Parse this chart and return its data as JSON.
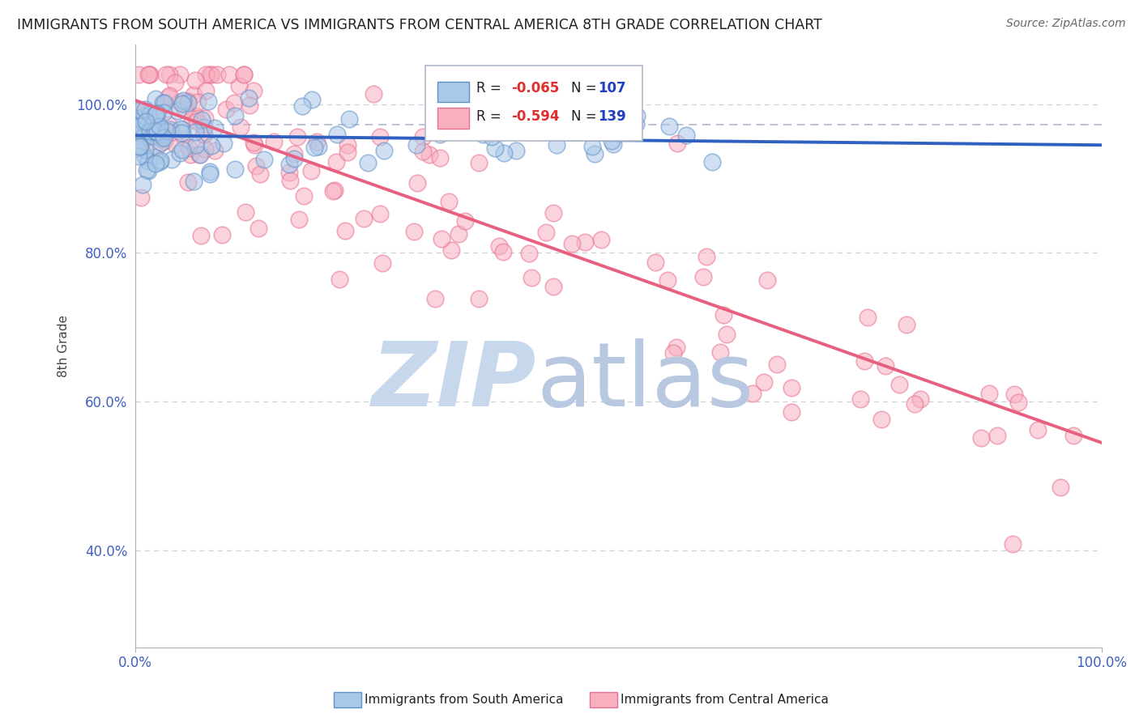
{
  "title": "IMMIGRANTS FROM SOUTH AMERICA VS IMMIGRANTS FROM CENTRAL AMERICA 8TH GRADE CORRELATION CHART",
  "source": "Source: ZipAtlas.com",
  "ylabel": "8th Grade",
  "blue_R": -0.065,
  "blue_N": 107,
  "pink_R": -0.594,
  "pink_N": 139,
  "blue_trend_x": [
    0.0,
    1.0
  ],
  "blue_trend_y": [
    0.958,
    0.945
  ],
  "pink_trend_x": [
    0.0,
    1.0
  ],
  "pink_trend_y": [
    1.005,
    0.545
  ],
  "dashed_line_y": 0.972,
  "xlim": [
    0.0,
    1.0
  ],
  "ylim": [
    0.27,
    1.08
  ],
  "yticks": [
    0.4,
    0.6,
    0.8,
    1.0
  ],
  "ytick_labels": [
    "40.0%",
    "60.0%",
    "80.0%",
    "100.0%"
  ],
  "xtick_positions": [
    0.0,
    1.0
  ],
  "xtick_labels": [
    "0.0%",
    "100.0%"
  ],
  "blue_face_color": "#aac8e8",
  "blue_edge_color": "#6090c8",
  "pink_face_color": "#f8b0c0",
  "pink_edge_color": "#e87090",
  "blue_line_color": "#3060c0",
  "pink_line_color": "#e86080",
  "dashed_color": "#b0b8d0",
  "grid_color": "#d0d0d8",
  "axis_color": "#b0b0b8",
  "tick_color": "#4060c0",
  "title_color": "#222222",
  "source_color": "#666666",
  "ylabel_color": "#444444",
  "legend_border_color": "#b0b8c8",
  "legend_R_color": "#e03030",
  "legend_N_color": "#2040c0",
  "watermark_zip_color": "#c8d8ec",
  "watermark_atlas_color": "#b8c8e0",
  "bottom_legend_blue_color": "#7aaad4",
  "bottom_legend_pink_color": "#f090a8"
}
